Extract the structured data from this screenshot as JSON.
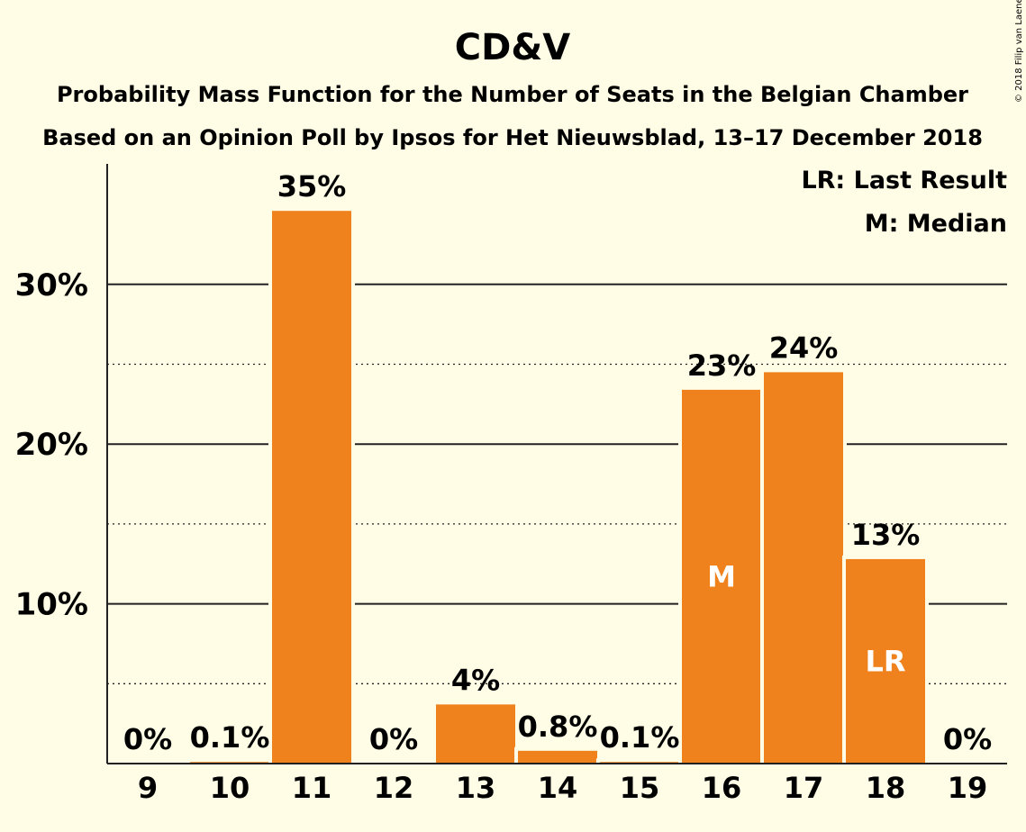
{
  "chart_data": {
    "type": "bar",
    "title": "CD&V",
    "subtitle_1": "Probability Mass Function for the Number of Seats in the Belgian Chamber",
    "subtitle_2": "Based on an Opinion Poll by Ipsos for Het Nieuwsblad, 13–17 December 2018",
    "categories": [
      "9",
      "10",
      "11",
      "12",
      "13",
      "14",
      "15",
      "16",
      "17",
      "18",
      "19"
    ],
    "values": [
      0,
      0.1,
      34.6,
      0,
      3.7,
      0.8,
      0.1,
      23.4,
      24.5,
      12.8,
      0
    ],
    "value_labels": [
      "0%",
      "0.1%",
      "35%",
      "0%",
      "4%",
      "0.8%",
      "0.1%",
      "23%",
      "24%",
      "13%",
      "0%"
    ],
    "markers": [
      {
        "category": "16",
        "label": "M"
      },
      {
        "category": "18",
        "label": "LR"
      }
    ],
    "ylim": [
      0,
      37.5
    ],
    "yticks": [
      10,
      20,
      30
    ],
    "ytick_labels": [
      "10%",
      "20%",
      "30%"
    ],
    "minor_grid": [
      5,
      15,
      25
    ],
    "xlabel": "",
    "ylabel": "",
    "bar_color": "#f0821e",
    "background_color": "#fffde6",
    "legend": {
      "position": "top-right",
      "entries": [
        "LR: Last Result",
        "M: Median"
      ]
    },
    "credit": "© 2018 Filip van Laenen"
  }
}
